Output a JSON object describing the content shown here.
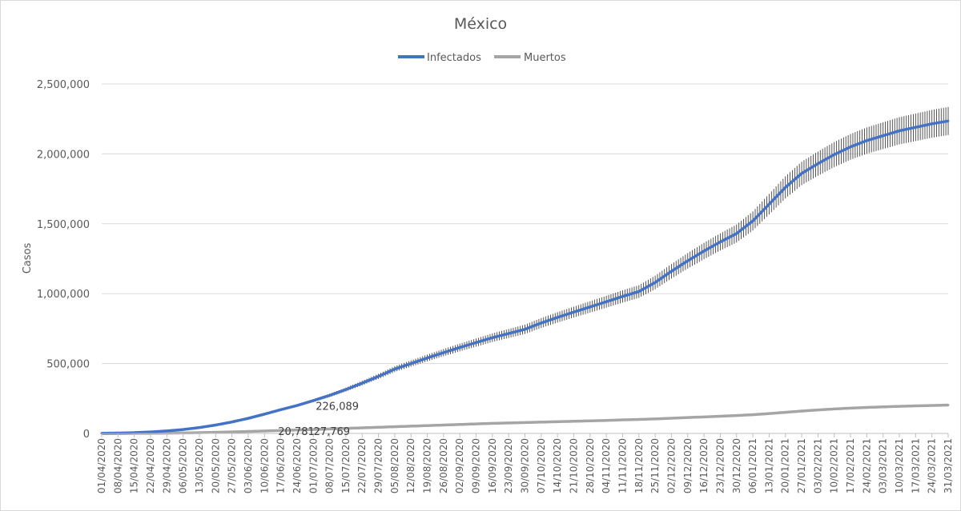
{
  "chart_data": {
    "type": "line",
    "title": "México",
    "xlabel": "",
    "ylabel": "Casos",
    "ylim": [
      0,
      2500000
    ],
    "yticks": [
      "0",
      "500,000",
      "1,000,000",
      "1,500,000",
      "2,000,000",
      "2,500,000"
    ],
    "ytick_values": [
      0,
      500000,
      1000000,
      1500000,
      2000000,
      2500000
    ],
    "grid": true,
    "legend_position": "top-center",
    "x_start": "2020-04-01",
    "x_end": "2021-03-31",
    "x": [
      "01/04/2020",
      "08/04/2020",
      "15/04/2020",
      "22/04/2020",
      "29/04/2020",
      "06/05/2020",
      "13/05/2020",
      "20/05/2020",
      "27/05/2020",
      "03/06/2020",
      "10/06/2020",
      "17/06/2020",
      "24/06/2020",
      "01/07/2020",
      "08/07/2020",
      "15/07/2020",
      "22/07/2020",
      "29/07/2020",
      "05/08/2020",
      "12/08/2020",
      "19/08/2020",
      "26/08/2020",
      "02/09/2020",
      "09/09/2020",
      "16/09/2020",
      "23/09/2020",
      "30/09/2020",
      "07/10/2020",
      "14/10/2020",
      "21/10/2020",
      "28/10/2020",
      "04/11/2020",
      "11/11/2020",
      "18/11/2020",
      "25/11/2020",
      "02/12/2020",
      "09/12/2020",
      "16/12/2020",
      "23/12/2020",
      "30/12/2020",
      "06/01/2021",
      "13/01/2021",
      "20/01/2021",
      "27/01/2021",
      "03/02/2021",
      "10/02/2021",
      "17/02/2021",
      "24/02/2021",
      "03/03/2021",
      "10/03/2021",
      "17/03/2021",
      "24/03/2021",
      "31/03/2021"
    ],
    "series": [
      {
        "name": "Infectados",
        "color": "#4472c4",
        "error_bars": true,
        "values": [
          1200,
          2800,
          5400,
          10500,
          18000,
          28000,
          42000,
          60000,
          82000,
          108000,
          138000,
          170000,
          200000,
          235000,
          272000,
          314000,
          360000,
          408000,
          460000,
          500000,
          540000,
          578000,
          615000,
          650000,
          685000,
          715000,
          745000,
          790000,
          830000,
          868000,
          905000,
          942000,
          980000,
          1015000,
          1080000,
          1160000,
          1235000,
          1305000,
          1370000,
          1430000,
          1520000,
          1640000,
          1760000,
          1860000,
          1930000,
          1995000,
          2050000,
          2095000,
          2130000,
          2165000,
          2190000,
          2215000,
          2235000
        ]
      },
      {
        "name": "Muertos",
        "color": "#a5a5a5",
        "error_bars": true,
        "values": [
          30,
          200,
          500,
          1000,
          2000,
          3500,
          5500,
          8000,
          11000,
          14000,
          17500,
          21000,
          24500,
          28000,
          32000,
          36000,
          40000,
          44000,
          48000,
          52000,
          56000,
          60000,
          64000,
          68000,
          72000,
          75000,
          78000,
          81000,
          84000,
          87000,
          90000,
          93000,
          97000,
          100000,
          104000,
          109000,
          114000,
          118000,
          123000,
          128000,
          134000,
          142000,
          151000,
          160000,
          168000,
          175000,
          181000,
          186000,
          190000,
          194000,
          197000,
          200000,
          203000
        ]
      }
    ],
    "annotations": [
      {
        "text": "226,089",
        "x": "2020-07-01",
        "y": 226089
      },
      {
        "text": "20,781",
        "x": "2020-07-01",
        "y": 20781
      },
      {
        "text": "27,769",
        "x": "2020-07-08",
        "y": 27769
      }
    ]
  }
}
